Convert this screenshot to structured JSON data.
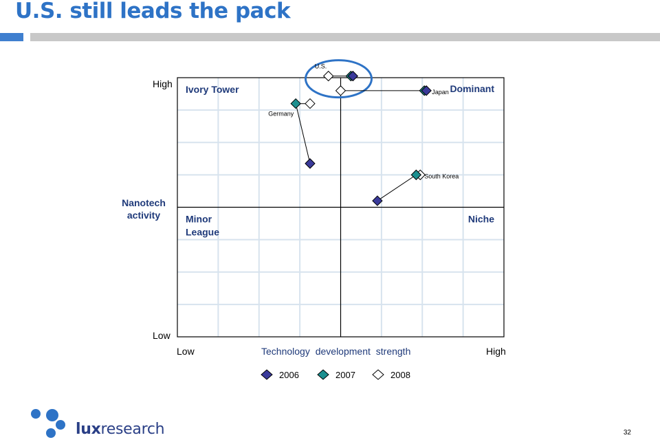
{
  "slide": {
    "title": "U.S. still leads the pack",
    "page_number": "32"
  },
  "logo": {
    "text_bold": "lux",
    "text_regular": "research"
  },
  "chart_data": {
    "type": "scatter",
    "xlabel": "Technology development strength",
    "ylabel": "Nanotech activity",
    "x_low_label": "Low",
    "x_high_label": "High",
    "y_low_label": "Low",
    "y_high_label": "High",
    "xlim": [
      0,
      8
    ],
    "ylim": [
      0,
      8
    ],
    "grid": true,
    "quadrants": [
      {
        "name": "Ivory Tower",
        "position": "top-left"
      },
      {
        "name": "Dominant",
        "position": "top-right"
      },
      {
        "name": "Minor League",
        "position": "bottom-left"
      },
      {
        "name": "Niche",
        "position": "bottom-right"
      }
    ],
    "legend_position": "bottom",
    "series": [
      {
        "name": "2006",
        "color": "#3a3a9a"
      },
      {
        "name": "2007",
        "color": "#1c8f8f"
      },
      {
        "name": "2008",
        "color": "#ffffff"
      }
    ],
    "countries": [
      {
        "name": "U.S.",
        "points": {
          "2006": [
            4.3,
            8.05
          ],
          "2007": [
            4.25,
            8.05
          ],
          "2008": [
            3.7,
            8.05
          ]
        }
      },
      {
        "name": "Japan",
        "points": {
          "2006": [
            6.1,
            7.6
          ],
          "2007": [
            6.05,
            7.6
          ],
          "2008": [
            4.0,
            7.6
          ]
        }
      },
      {
        "name": "Germany",
        "points": {
          "2006": [
            3.25,
            5.35
          ],
          "2007": [
            2.9,
            7.2
          ],
          "2008": [
            3.25,
            7.2
          ]
        }
      },
      {
        "name": "South Korea",
        "points": {
          "2006": [
            4.9,
            4.2
          ],
          "2007": [
            5.85,
            5.0
          ],
          "2008": [
            5.95,
            5.0
          ]
        }
      }
    ],
    "highlight": {
      "country": "U.S.",
      "shape": "ellipse"
    }
  }
}
